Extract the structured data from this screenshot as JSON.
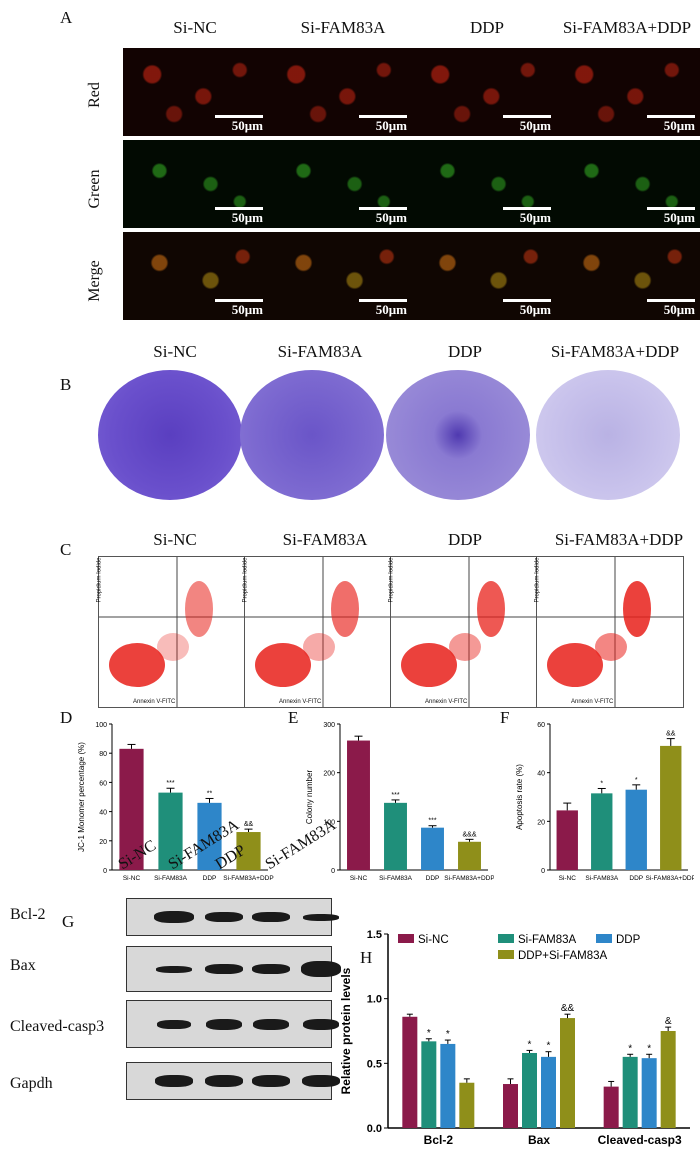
{
  "panels": {
    "A": "A",
    "B": "B",
    "C": "C",
    "D": "D",
    "E": "E",
    "F": "F",
    "G": "G",
    "H": "H"
  },
  "groups": [
    "Si-NC",
    "Si-FAM83A",
    "DDP",
    "Si-FAM83A+DDP"
  ],
  "fluorescence": {
    "rows": [
      "Red",
      "Green",
      "Merge"
    ],
    "scale_label": "50μm"
  },
  "flow": {
    "x_axis": "Annexin V-FITC",
    "y_axis": "Propidium Iodide"
  },
  "western": {
    "lanes": [
      "Si-NC",
      "Si-FAM83A",
      "DDP",
      "Si-FAM83A"
    ],
    "proteins": [
      "Bcl-2",
      "Bax",
      "Cleaved-casp3",
      "Gapdh"
    ]
  },
  "colors": {
    "si_nc": "#8B1A4A",
    "si_fam83a": "#1F8F7A",
    "ddp": "#2E86C9",
    "combo": "#8F8F1A"
  },
  "chart_data": [
    {
      "id": "D",
      "type": "bar",
      "ylabel": "JC-1 Monomer percentage (%)",
      "categories": [
        "Si-NC",
        "Si-FAM83A",
        "DDP",
        "Si-FAM83A+DDP"
      ],
      "values": [
        83,
        53,
        46,
        26
      ],
      "errors": [
        3,
        3,
        3,
        2
      ],
      "annotations": [
        "",
        "***",
        "**",
        "&&"
      ],
      "ylim": [
        0,
        100
      ],
      "yticks": [
        0,
        20,
        40,
        60,
        80,
        100
      ]
    },
    {
      "id": "E",
      "type": "bar",
      "ylabel": "Colony number",
      "categories": [
        "Si-NC",
        "Si-FAM83A",
        "DDP",
        "Si-FAM83A+DDP"
      ],
      "values": [
        266,
        138,
        87,
        58
      ],
      "errors": [
        9,
        6,
        4,
        5
      ],
      "annotations": [
        "",
        "***",
        "***",
        "&&&"
      ],
      "ylim": [
        0,
        300
      ],
      "yticks": [
        0,
        100,
        200,
        300
      ]
    },
    {
      "id": "F",
      "type": "bar",
      "ylabel": "Apoptosis rate (%)",
      "categories": [
        "Si-NC",
        "Si-FAM83A",
        "DDP",
        "Si-FAM83A+DDP"
      ],
      "values": [
        24.5,
        31.5,
        33,
        51
      ],
      "errors": [
        3,
        2,
        2,
        3
      ],
      "annotations": [
        "",
        "*",
        "*",
        "&&"
      ],
      "ylim": [
        0,
        60
      ],
      "yticks": [
        0,
        20,
        40,
        60
      ]
    },
    {
      "id": "H",
      "type": "bar",
      "ylabel": "Relative protein levels",
      "categories": [
        "Bcl-2",
        "Bax",
        "Cleaved-casp3"
      ],
      "series": [
        {
          "name": "Si-NC",
          "values": [
            0.86,
            0.34,
            0.32
          ],
          "errors": [
            0.02,
            0.04,
            0.04
          ],
          "annotations": [
            "",
            "",
            ""
          ]
        },
        {
          "name": "Si-FAM83A",
          "values": [
            0.67,
            0.58,
            0.55
          ],
          "errors": [
            0.02,
            0.02,
            0.02
          ],
          "annotations": [
            "*",
            "*",
            "*"
          ]
        },
        {
          "name": "DDP",
          "values": [
            0.65,
            0.55,
            0.54
          ],
          "errors": [
            0.03,
            0.04,
            0.03
          ],
          "annotations": [
            "*",
            "*",
            "*"
          ]
        },
        {
          "name": "DDP+Si-FAM83A",
          "values": [
            0.35,
            0.85,
            0.75
          ],
          "errors": [
            0.03,
            0.03,
            0.03
          ],
          "annotations": [
            "",
            "&&",
            "&"
          ]
        }
      ],
      "ylim": [
        0,
        1.5
      ],
      "yticks": [
        "0.0",
        "0.5",
        "1.0",
        "1.5"
      ],
      "legend": "top"
    }
  ]
}
